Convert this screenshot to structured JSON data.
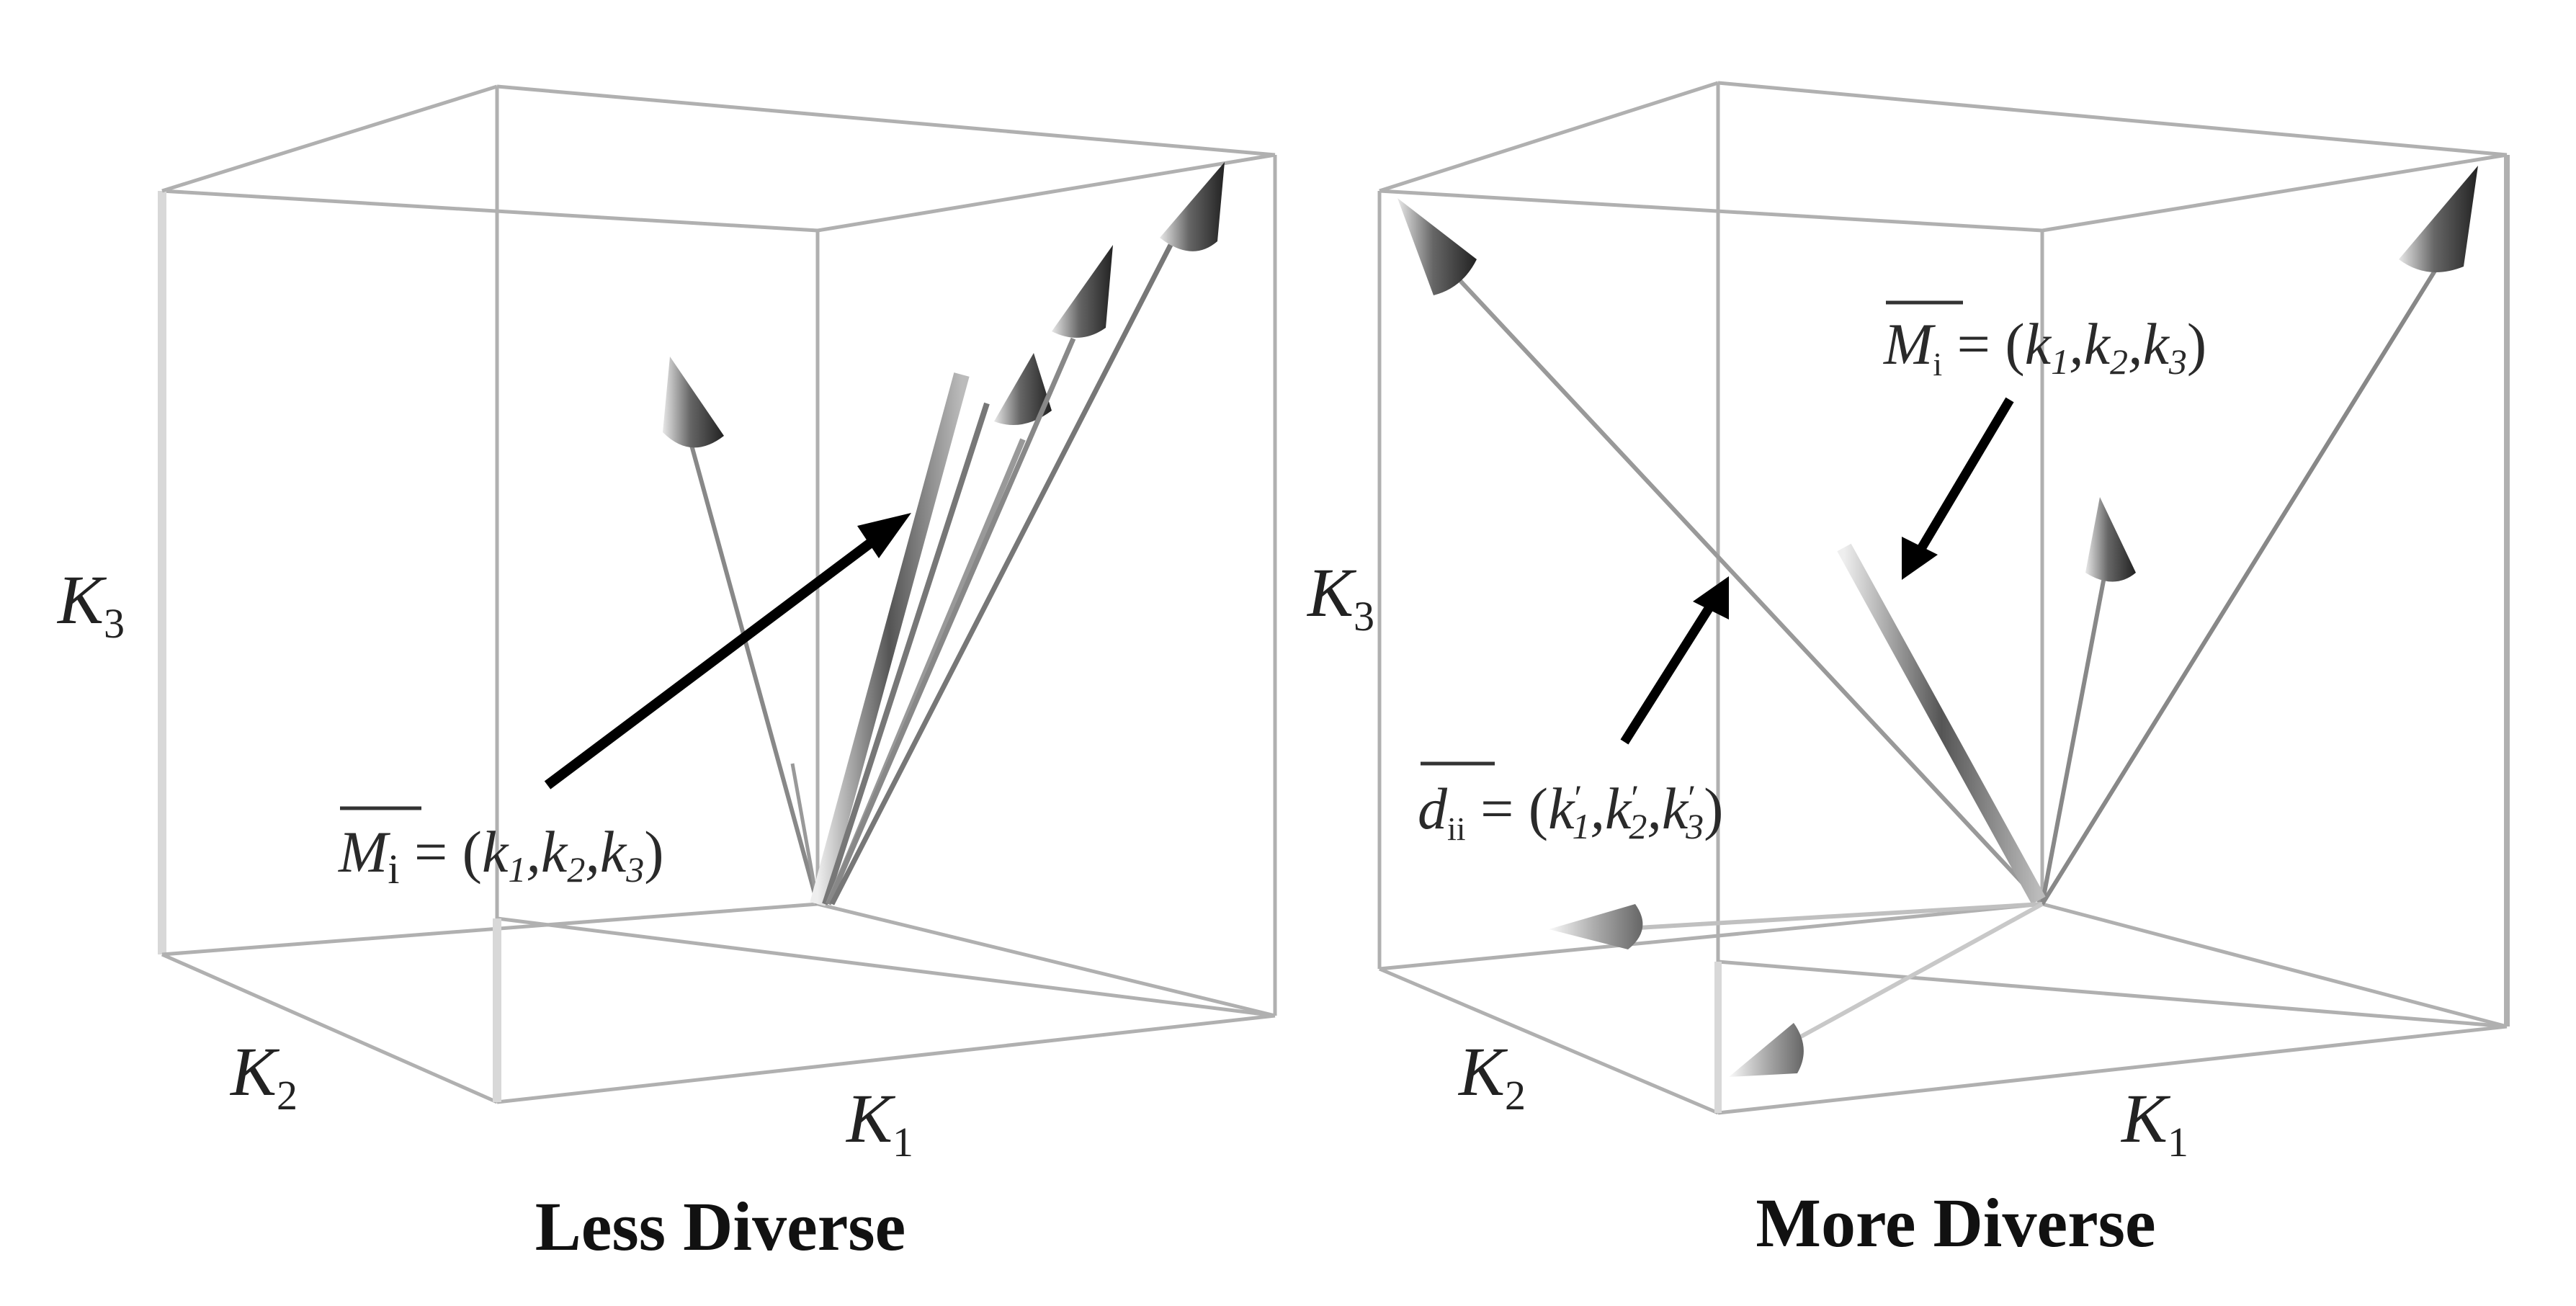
{
  "panels": [
    {
      "id": "left",
      "caption": "Less Diverse",
      "axes": {
        "x": {
          "main": "K",
          "sub": "1"
        },
        "y": {
          "main": "K",
          "sub": "2"
        },
        "z": {
          "main": "K",
          "sub": "3"
        }
      },
      "annotation": {
        "vector": "M",
        "vector_sub": "i",
        "equals": " = (",
        "c1": "k",
        "s1": "1",
        "c2": "k",
        "s2": "2",
        "c3": "k",
        "s3": "3",
        "close": ")"
      }
    },
    {
      "id": "right",
      "caption": "More Diverse",
      "axes": {
        "x": {
          "main": "K",
          "sub": "1"
        },
        "y": {
          "main": "K",
          "sub": "2"
        },
        "z": {
          "main": "K",
          "sub": "3"
        }
      },
      "annotation_top": {
        "vector": "M",
        "vector_sub": "i",
        "equals": " = (",
        "c1": "k",
        "s1": "1",
        "c2": "k",
        "s2": "2",
        "c3": "k",
        "s3": "3",
        "close": ")"
      },
      "annotation_bottom": {
        "vector": "d",
        "vector_sub": "ii",
        "equals": " = (",
        "c1": "k",
        "s1": "1",
        "c2": "k",
        "s2": "2",
        "c3": "k",
        "s3": "3",
        "prime": "′",
        "close": ")"
      }
    }
  ],
  "colors": {
    "box_edge": "#b0b0b0",
    "vector_dark": "#555555",
    "vector_light": "#c8c8c8",
    "pointer": "#000000",
    "text": "#222222"
  }
}
